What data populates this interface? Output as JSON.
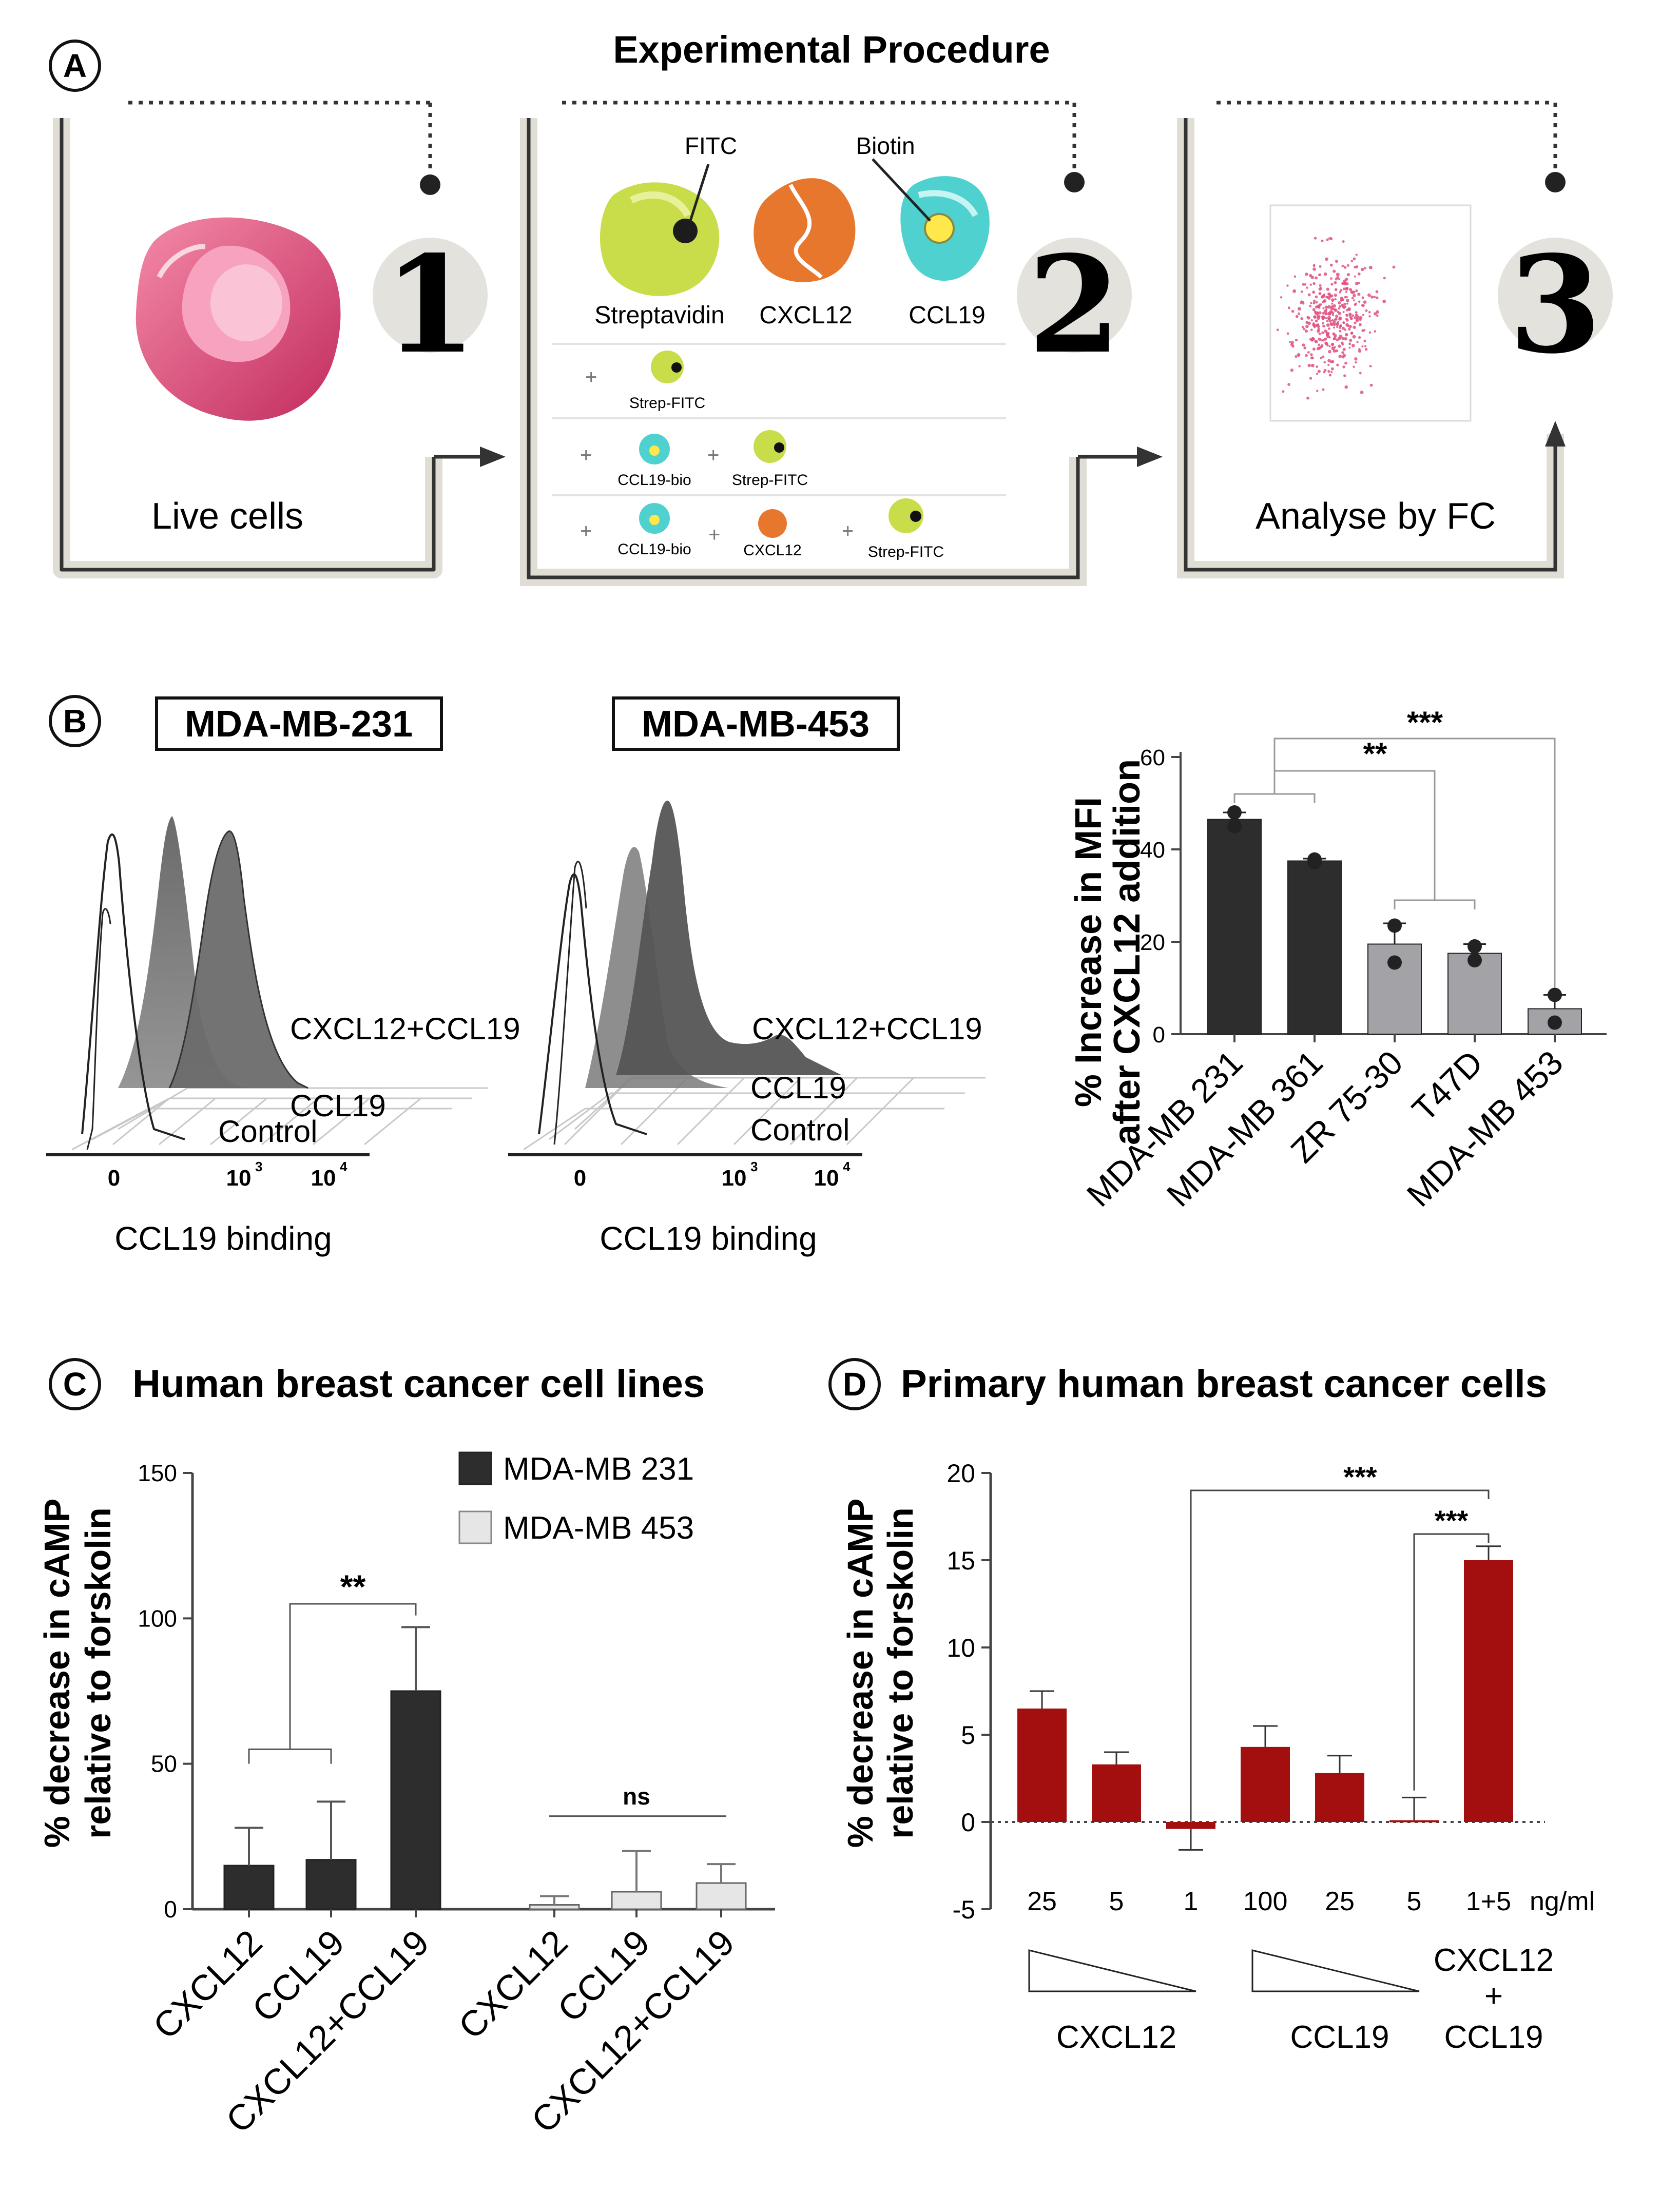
{
  "panel_a": {
    "letter": "A",
    "title": "Experimental Procedure",
    "steps": [
      {
        "number": "1",
        "caption": "Live cells"
      },
      {
        "number": "2",
        "caption": ""
      },
      {
        "number": "3",
        "caption": "Analyse by FC"
      }
    ],
    "reagents": {
      "fitc": "FITC",
      "biotin": "Biotin",
      "streptavidin": "Streptavidin",
      "cxcl12": "CXCL12",
      "ccl19": "CCL19"
    },
    "rows": [
      [
        "Strep-FITC"
      ],
      [
        "CCL19-bio",
        "Strep-FITC"
      ],
      [
        "CCL19-bio",
        "CXCL12",
        "Strep-FITC"
      ]
    ],
    "plus": "+",
    "colors": {
      "cell": "#e0507f",
      "strep": "#c9dc4a",
      "cxcl12": "#e8772e",
      "ccl19": "#4fd1cf",
      "biotin": "#ffe94a",
      "frame": "#444444",
      "circle": "#e4e2dc",
      "dots": "#e0507f"
    }
  },
  "panel_b": {
    "letter": "B",
    "histograms": [
      {
        "title": "MDA-MB-231",
        "labels": [
          "CXCL12+CCL19",
          "CCL19",
          "Control"
        ],
        "xaxis": "CCL19 binding",
        "ticks": [
          "0",
          "10",
          "10"
        ],
        "tick_exp": [
          "",
          "3",
          "4"
        ]
      },
      {
        "title": "MDA-MB-453",
        "labels": [
          "CXCL12+CCL19",
          "CCL19",
          "Control"
        ],
        "xaxis": "CCL19 binding",
        "ticks": [
          "0",
          "10",
          "10"
        ],
        "tick_exp": [
          "",
          "3",
          "4"
        ]
      }
    ],
    "chart_data": {
      "type": "bar",
      "categories": [
        "MDA-MB 231",
        "MDA-MB 361",
        "ZR 75-30",
        "T47D",
        "MDA-MB 453"
      ],
      "values": [
        46.5,
        37.5,
        19.5,
        17.5,
        5.5
      ],
      "errors": [
        1.5,
        0.5,
        4.5,
        2,
        3
      ],
      "points": [
        [
          48,
          45
        ],
        [
          37.8,
          37.2
        ],
        [
          23.5,
          15.5
        ],
        [
          19,
          16
        ],
        [
          8.5,
          2.5
        ]
      ],
      "colors": [
        "#2d2d2d",
        "#2d2d2d",
        "#a3a3a7",
        "#a3a3a7",
        "#a3a3a7"
      ],
      "ylabel": [
        "% Increase in MFI",
        "after CXCL12 addition"
      ],
      "ylim": [
        0,
        60
      ],
      "yticks": [
        "0",
        "20",
        "40",
        "60"
      ],
      "sig": [
        "**",
        "***"
      ]
    }
  },
  "panel_c": {
    "letter": "C",
    "title": "Human breast cancer cell lines",
    "chart_data": {
      "type": "bar",
      "categories": [
        "CXCL12",
        "CCL19",
        "CXCL12+CCL19"
      ],
      "series": [
        {
          "name": "MDA-MB 231",
          "values": [
            15,
            17,
            75
          ],
          "errors": [
            13,
            20,
            22
          ],
          "color": "#2d2d2d"
        },
        {
          "name": "MDA-MB 453",
          "values": [
            1.5,
            6,
            9
          ],
          "errors": [
            3,
            14,
            6.5
          ],
          "color": "#e6e6e6"
        }
      ],
      "ylabel": [
        "% decrease in cAMP",
        "relative to forskolin"
      ],
      "ylim": [
        0,
        150
      ],
      "yticks": [
        "0",
        "50",
        "100",
        "150"
      ],
      "sig": [
        "**",
        "ns"
      ]
    }
  },
  "panel_d": {
    "letter": "D",
    "title": "Primary human breast cancer cells",
    "chart_data": {
      "type": "bar",
      "categories": [
        "25",
        "5",
        "1",
        "100",
        "25",
        "5",
        "1+5"
      ],
      "unit": "ng/ml",
      "values": [
        6.5,
        3.3,
        -0.4,
        4.3,
        2.8,
        0.1,
        15
      ],
      "errors": [
        1,
        0.7,
        1.2,
        1.2,
        1,
        1.3,
        0.8
      ],
      "color": "#a30f0f",
      "ylabel": [
        "% decrease in cAMP",
        "relative to forskolin"
      ],
      "ylim": [
        -5,
        20
      ],
      "yticks": [
        "-5",
        "0",
        "5",
        "10",
        "15",
        "20"
      ],
      "groups": [
        "CXCL12",
        "CCL19"
      ],
      "combo": [
        "CXCL12",
        "+",
        "CCL19"
      ],
      "sig": [
        "***",
        "***"
      ]
    }
  }
}
